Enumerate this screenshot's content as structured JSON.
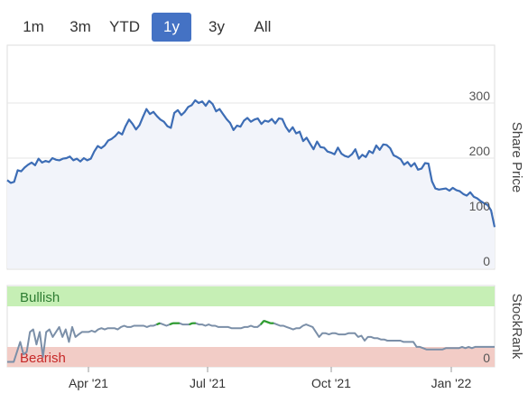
{
  "range_tabs": {
    "items": [
      "1m",
      "3m",
      "YTD",
      "1y",
      "3y",
      "All"
    ],
    "selected": "1y"
  },
  "colors": {
    "accent": "#4472c4",
    "price_line": "#3d6db5",
    "rank_line": "#7b8fa8",
    "bullish_band": "#c6efb5",
    "bearish_band": "#f2ccc6",
    "bullish_text": "#2e7d32",
    "bearish_text": "#c62828",
    "highlight_green": "#2e9e2e"
  },
  "price_chart": {
    "axis_title": "Share Price",
    "ticks": [
      "300",
      "200",
      "100",
      "0"
    ],
    "ylim": [
      0,
      300
    ]
  },
  "rank_chart": {
    "axis_title": "StockRank",
    "bullish_label": "Bullish",
    "bearish_label": "Bearish",
    "bottom_tick": "0"
  },
  "x_axis": {
    "labels": [
      "Apr '21",
      "Jul '21",
      "Oct '21",
      "Jan '22"
    ]
  },
  "chart_data": [
    {
      "type": "area",
      "series": [
        {
          "values": [
            160,
            155,
            157,
            178,
            176,
            183,
            188,
            192,
            187,
            199,
            192,
            195,
            193,
            200,
            197,
            196,
            199,
            200,
            203,
            196,
            199,
            194,
            200,
            196,
            199,
            212,
            222,
            218,
            223,
            232,
            235,
            240,
            247,
            243,
            258,
            270,
            262,
            252,
            260,
            275,
            289,
            280,
            284,
            276,
            270,
            266,
            258,
            255,
            282,
            287,
            278,
            284,
            293,
            296,
            305,
            300,
            303,
            295,
            304,
            298,
            285,
            289,
            280,
            271,
            264,
            251,
            259,
            257,
            268,
            273,
            266,
            270,
            272,
            262,
            268,
            266,
            271,
            263,
            272,
            271,
            257,
            248,
            256,
            245,
            248,
            231,
            237,
            226,
            216,
            230,
            220,
            219,
            212,
            210,
            207,
            219,
            208,
            204,
            202,
            207,
            216,
            199,
            206,
            202,
            213,
            209,
            223,
            215,
            225,
            224,
            218,
            205,
            202,
            198,
            188,
            193,
            185,
            191,
            179,
            181,
            191,
            190,
            158,
            145,
            143,
            144,
            145,
            141,
            146,
            142,
            140,
            135,
            132,
            138,
            130,
            127,
            122,
            118,
            115,
            105,
            75
          ]
        }
      ]
    },
    {
      "type": "line",
      "series": [
        {
          "values": [
            4,
            4,
            4,
            12,
            20,
            10,
            12,
            28,
            30,
            18,
            28,
            8,
            28,
            30,
            24,
            28,
            32,
            24,
            30,
            20,
            32,
            24,
            26,
            28,
            28,
            28,
            29,
            28,
            30,
            31,
            30,
            31,
            31,
            31,
            30,
            32,
            33,
            32,
            32,
            33,
            33,
            33,
            33,
            32,
            33,
            33,
            34,
            35,
            34,
            33,
            34,
            35,
            35,
            35,
            34,
            34,
            34,
            35,
            35,
            34,
            34,
            33,
            34,
            33,
            33,
            32,
            32,
            32,
            32,
            31,
            31,
            31,
            31,
            32,
            32,
            33,
            32,
            32,
            34,
            37,
            36,
            35,
            35,
            34,
            33,
            33,
            32,
            31,
            30,
            31,
            31,
            33,
            34,
            33,
            32,
            28,
            24,
            27,
            27,
            26,
            27,
            27,
            26,
            26,
            26,
            27,
            27,
            27,
            24,
            25,
            21,
            24,
            24,
            23,
            23,
            22,
            22,
            21,
            21,
            21,
            21,
            21,
            20,
            20,
            20,
            20,
            16,
            16,
            15,
            14,
            14,
            14,
            14,
            14,
            14,
            15,
            15,
            15,
            15,
            15,
            16,
            15,
            16,
            15,
            16,
            16,
            16,
            16,
            16,
            16,
            16
          ]
        }
      ]
    }
  ]
}
